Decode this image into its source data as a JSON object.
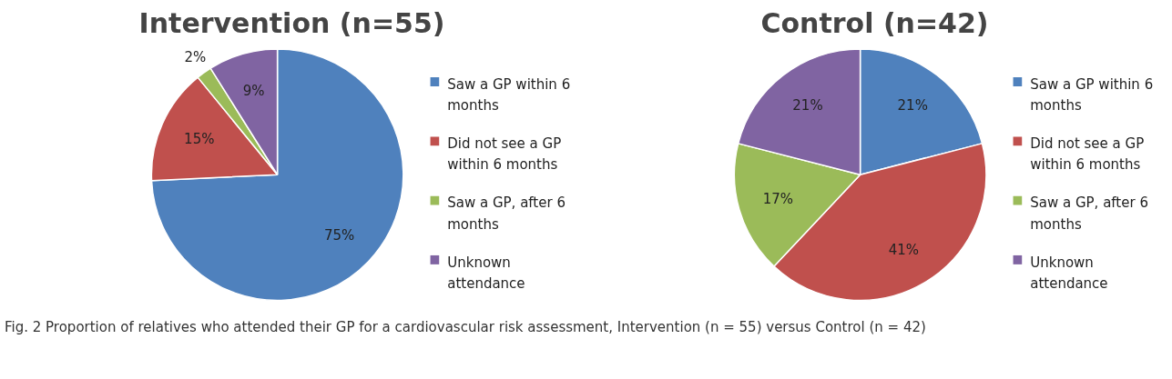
{
  "chart_data": [
    {
      "type": "pie",
      "title": "Intervention (n=55)",
      "categories": [
        "Saw a GP within 6 months",
        "Did not see a GP within 6 months",
        "Saw a GP, after 6 months",
        "Unknown attendance"
      ],
      "values": [
        75,
        15,
        2,
        9
      ],
      "colors": [
        "#4f81bd",
        "#c0504d",
        "#9bbb59",
        "#8064a2"
      ],
      "value_labels": [
        "75%",
        "15%",
        "2%",
        "9%"
      ],
      "legend": "right",
      "annotations": [
        "Fig. 2 Proportion of relatives who attended their GP for a cardiovascular risk assessment, Intervention (n = 55) versus Control (n = 42)"
      ]
    },
    {
      "type": "pie",
      "title": "Control (n=42)",
      "categories": [
        "Saw a GP within 6 months",
        "Did not see a GP within 6 months",
        "Saw a GP, after 6 months",
        "Unknown attendance"
      ],
      "values": [
        21,
        41,
        17,
        21
      ],
      "colors": [
        "#4f81bd",
        "#c0504d",
        "#9bbb59",
        "#8064a2"
      ],
      "value_labels": [
        "21%",
        "41%",
        "17%",
        "21%"
      ],
      "legend": "right"
    }
  ]
}
